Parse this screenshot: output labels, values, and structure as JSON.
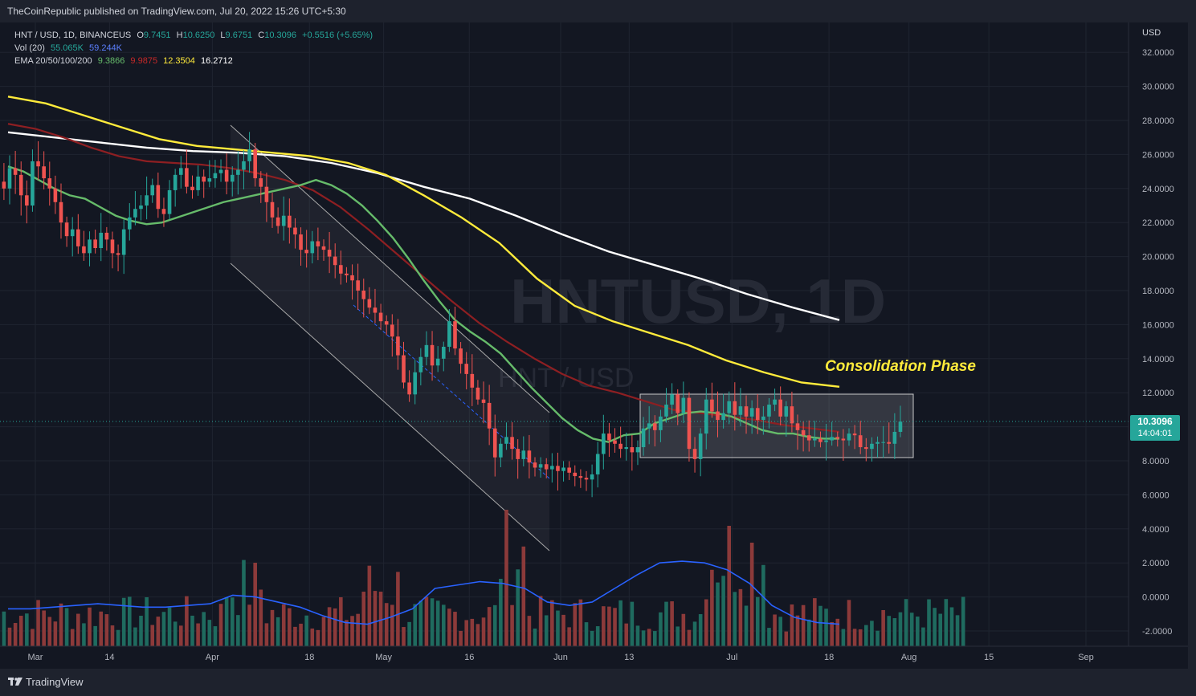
{
  "header": {
    "published": "TheCoinRepublic published on TradingView.com, Jul 20, 2022 15:26 UTC+5:30"
  },
  "legend": {
    "symbol": "HNT / USD, 1D, BINANCEUS",
    "o_label": "O",
    "o": "9.7451",
    "h_label": "H",
    "h": "10.6250",
    "l_label": "L",
    "l": "9.6751",
    "c_label": "C",
    "c": "10.3096",
    "change": "+0.5516 (+5.65%)",
    "vol_label": "Vol (20)",
    "vol1": "55.065K",
    "vol2": "59.244K",
    "ema_label": "EMA 20/50/100/200",
    "ema20": "9.3866",
    "ema50": "9.9875",
    "ema100": "12.3504",
    "ema200": "16.2712"
  },
  "price_scale": {
    "currency": "USD"
  },
  "current_price": {
    "value": "10.3096",
    "countdown": "14:04:01"
  },
  "footer": {
    "brand": "TradingView"
  },
  "colors": {
    "up": "#26a69a",
    "down": "#ef5350",
    "ema20": "#66bb6a",
    "ema50": "#8e1f22",
    "ema100": "#ffeb3b",
    "ema200": "#ffffff",
    "vol_ma": "#2962ff",
    "annotation": "#ffeb3b"
  },
  "chart_data": {
    "type": "candlestick",
    "title": "HNT / USD, 1D, BINANCEUS",
    "watermark": [
      "HNTUSD, 1D",
      "HNT / USD"
    ],
    "annotation": "Consolidation Phase",
    "y_ticks": [
      "32.0000",
      "30.0000",
      "28.0000",
      "26.0000",
      "24.0000",
      "22.0000",
      "20.0000",
      "18.0000",
      "16.0000",
      "14.0000",
      "12.0000",
      "10.0000",
      "8.0000",
      "6.0000",
      "4.0000",
      "2.0000",
      "0.0000",
      "-2.0000"
    ],
    "y_tick_values": [
      32,
      30,
      28,
      26,
      24,
      22,
      20,
      18,
      16,
      14,
      12,
      10,
      8,
      6,
      4,
      2,
      0,
      -2
    ],
    "ylim": [
      -2.6,
      33
    ],
    "x_ticks": [
      "Mar",
      "14",
      "Apr",
      "18",
      "May",
      "16",
      "Jun",
      "13",
      "Jul",
      "18",
      "Aug",
      "15",
      "Sep"
    ],
    "x_tick_dates": [
      "2022-03-01",
      "2022-03-14",
      "2022-04-01",
      "2022-04-18",
      "2022-05-01",
      "2022-05-16",
      "2022-06-01",
      "2022-06-13",
      "2022-07-01",
      "2022-07-18",
      "2022-08-01",
      "2022-08-15",
      "2022-09-01"
    ],
    "candle_closes": [
      24.0,
      25.2,
      24.8,
      23.6,
      23.0,
      25.6,
      25.3,
      24.6,
      24.0,
      23.2,
      22.0,
      21.2,
      21.6,
      20.6,
      20.2,
      21.0,
      20.5,
      21.4,
      21.0,
      20.2,
      20.1,
      21.6,
      22.3,
      22.8,
      23.0,
      23.6,
      24.2,
      22.8,
      22.5,
      23.9,
      24.8,
      25.2,
      24.1,
      23.9,
      24.7,
      24.4,
      24.6,
      24.9,
      25.1,
      24.4,
      24.8,
      25.1,
      25.6,
      26.3,
      24.6,
      24.1,
      23.2,
      22.3,
      21.8,
      22.4,
      21.7,
      21.3,
      20.4,
      20.2,
      20.9,
      20.6,
      20.4,
      20.0,
      19.5,
      19.0,
      18.9,
      18.6,
      18.0,
      17.5,
      17.0,
      16.7,
      16.2,
      16.0,
      15.3,
      14.2,
      12.6,
      11.9,
      13.2,
      14.1,
      14.8,
      13.6,
      14.0,
      14.7,
      16.2,
      14.6,
      13.7,
      13.1,
      12.3,
      11.6,
      11.4,
      9.9,
      8.2,
      9.0,
      9.4,
      8.7,
      8.1,
      8.6,
      7.9,
      7.6,
      7.8,
      7.5,
      7.7,
      7.4,
      7.6,
      7.3,
      7.1,
      7.0,
      6.9,
      7.2,
      8.4,
      9.6,
      9.2,
      9.0,
      8.7,
      8.8,
      8.5,
      8.8,
      9.9,
      10.2,
      9.8,
      10.6,
      11.3,
      11.9,
      10.8,
      11.7,
      8.7,
      8.1,
      9.6,
      11.6,
      10.9,
      10.4,
      10.8,
      11.5,
      10.7,
      11.2,
      10.6,
      11.1,
      10.4,
      10.6,
      11.3,
      11.6,
      10.6,
      11.2,
      10.2,
      9.8,
      9.5,
      9.2,
      9.3,
      9.1,
      9.2,
      9.4,
      9.3,
      9.2,
      9.6,
      9.5,
      8.8,
      8.7,
      9.0,
      9.1,
      9.1,
      9.0,
      9.7,
      10.3
    ],
    "ema20": [
      25.3,
      25.0,
      24.5,
      24.0,
      23.6,
      23.4,
      22.9,
      22.4,
      22.1,
      21.9,
      22.0,
      22.3,
      22.6,
      22.9,
      23.2,
      23.4,
      23.6,
      23.8,
      24.0,
      24.2,
      24.5,
      24.2,
      23.7,
      23.0,
      22.1,
      21.1,
      19.9,
      18.6,
      17.4,
      16.3,
      15.6,
      15.0,
      14.3,
      13.3,
      12.3,
      11.4,
      10.5,
      9.8,
      9.3,
      9.1,
      9.5,
      9.6,
      10.2,
      10.5,
      10.8,
      10.9,
      10.8,
      10.6,
      10.2,
      9.8,
      9.6,
      9.6,
      9.4,
      9.3,
      9.3
    ],
    "ema50": [
      27.8,
      27.5,
      27.0,
      26.4,
      25.9,
      25.6,
      25.5,
      25.4,
      25.2,
      24.9,
      24.5,
      23.9,
      22.9,
      21.6,
      20.2,
      18.8,
      17.4,
      16.1,
      15.0,
      14.0,
      13.1,
      12.4,
      12.0,
      11.5,
      11.0,
      10.8,
      10.6,
      10.4,
      10.1,
      9.9,
      9.7
    ],
    "ema100": [
      29.4,
      29.0,
      28.3,
      27.6,
      26.9,
      26.5,
      26.3,
      26.1,
      25.9,
      25.5,
      24.8,
      23.6,
      22.3,
      20.8,
      18.7,
      17.1,
      16.2,
      15.5,
      14.8,
      13.9,
      13.2,
      12.6,
      12.35
    ],
    "ema200": [
      27.3,
      27.0,
      26.7,
      26.4,
      26.2,
      26.1,
      25.9,
      25.5,
      24.9,
      24.1,
      23.4,
      22.4,
      21.3,
      20.3,
      19.5,
      18.7,
      17.8,
      17.0,
      16.27
    ],
    "volume_count": 170,
    "vol_ma": [
      -0.7,
      -0.7,
      -0.6,
      -0.5,
      -0.4,
      -0.5,
      -0.6,
      -0.6,
      -0.5,
      -0.4,
      0.1,
      0.0,
      -0.3,
      -0.6,
      -1.1,
      -1.5,
      -1.6,
      -1.2,
      -0.7,
      0.5,
      0.7,
      0.9,
      0.8,
      0.5,
      -0.3,
      -0.5,
      -0.3,
      0.5,
      1.3,
      2.0,
      2.1,
      2.0,
      1.6,
      0.8,
      -0.5,
      -1.2,
      -1.5,
      -1.6
    ]
  }
}
